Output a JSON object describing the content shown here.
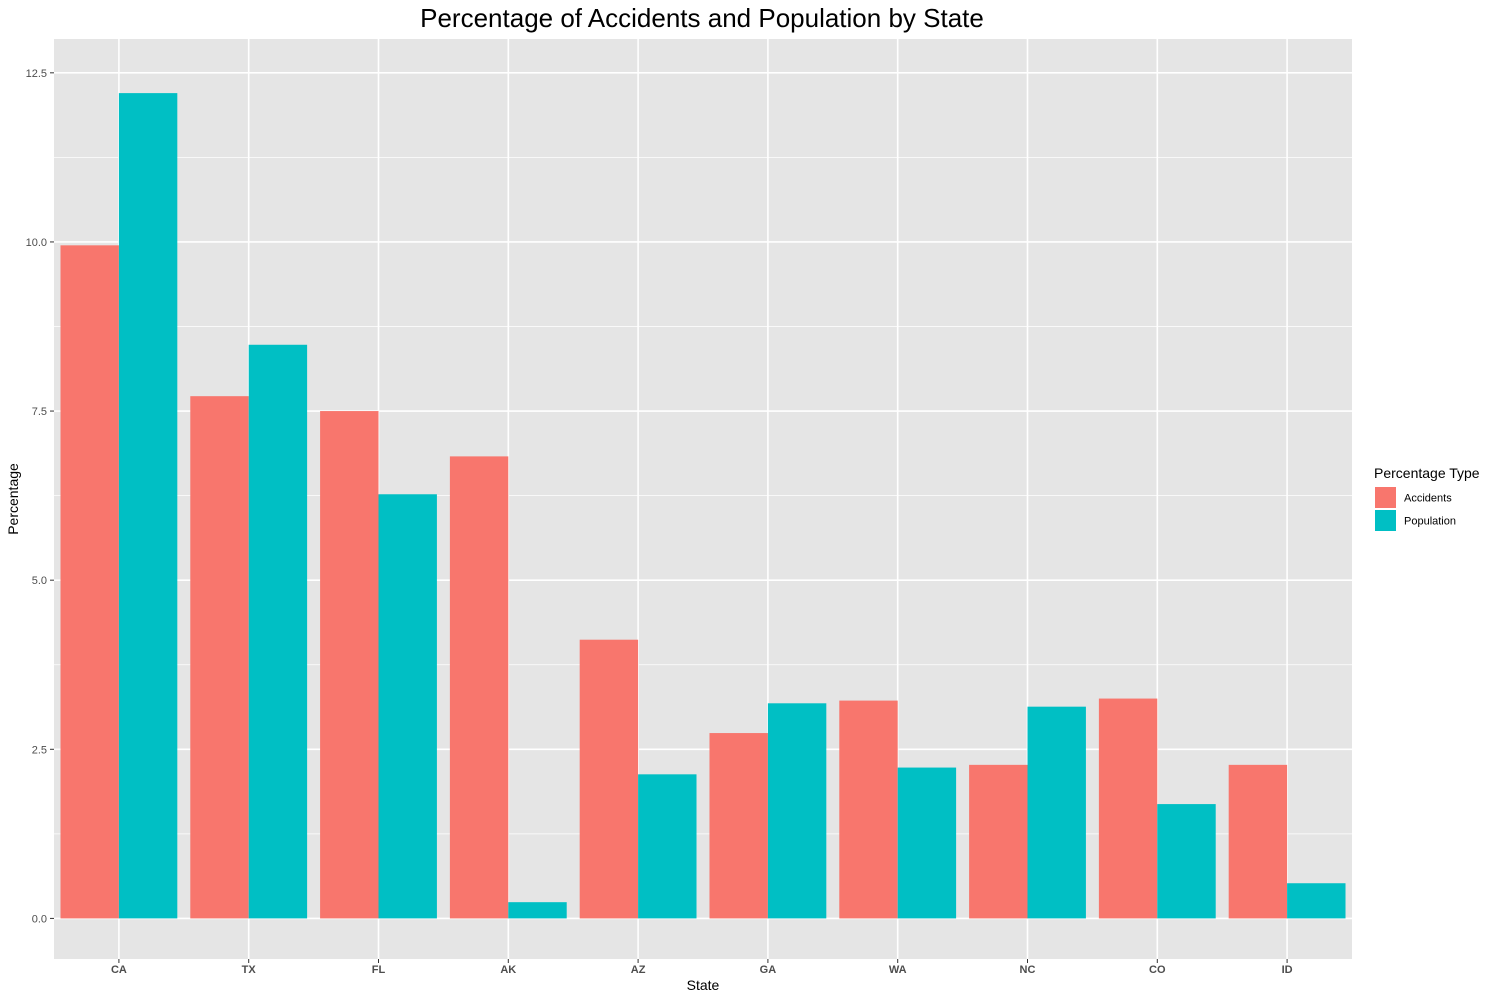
{
  "chart_data": {
    "type": "bar",
    "title": "Percentage of Accidents and Population by State",
    "xlabel": "State",
    "ylabel": "Percentage",
    "categories": [
      "CA",
      "TX",
      "FL",
      "AK",
      "AZ",
      "GA",
      "WA",
      "NC",
      "CO",
      "ID"
    ],
    "series": [
      {
        "name": "Accidents",
        "color": "#F8766D",
        "values": [
          9.95,
          7.72,
          7.5,
          6.83,
          4.12,
          2.74,
          3.22,
          2.27,
          3.25,
          2.27
        ]
      },
      {
        "name": "Population",
        "color": "#00BFC4",
        "values": [
          12.2,
          8.48,
          6.27,
          0.24,
          2.13,
          3.18,
          2.23,
          3.13,
          1.69,
          0.52
        ]
      }
    ],
    "ylim": [
      -0.6,
      13.0
    ],
    "y_ticks": [
      0.0,
      2.5,
      5.0,
      7.5,
      10.0,
      12.5
    ],
    "y_tick_labels": [
      "0.0",
      "2.5",
      "5.0",
      "7.5",
      "10.0",
      "12.5"
    ],
    "grid": true,
    "legend": {
      "title": "Percentage Type",
      "position": "right",
      "items": [
        "Accidents",
        "Population"
      ]
    },
    "panel_background": "#E5E5E5",
    "grid_color": "#FFFFFF"
  }
}
